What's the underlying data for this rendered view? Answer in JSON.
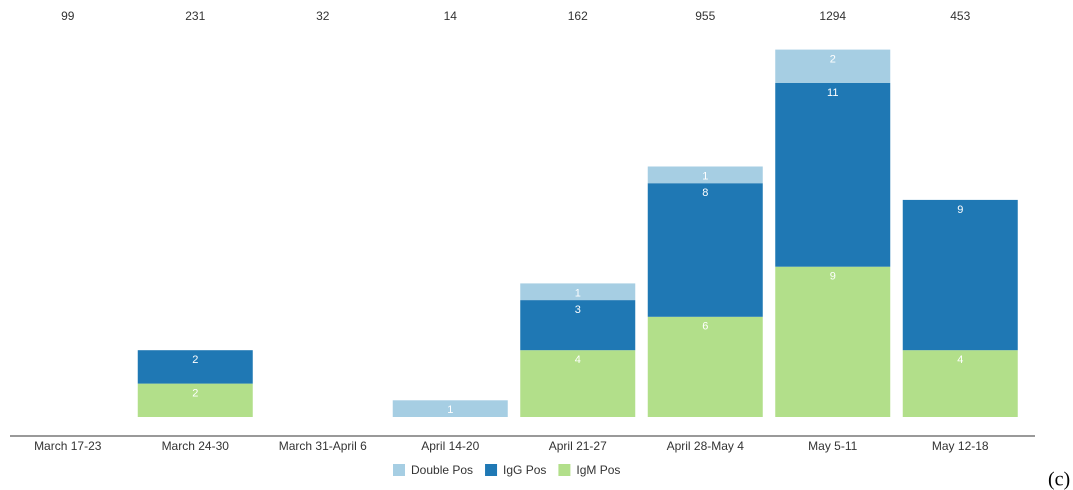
{
  "chart_data": {
    "type": "bar",
    "stacked": true,
    "categories": [
      "March 17-23",
      "March 24-30",
      "March 31-April 6",
      "April 14-20",
      "April 21-27",
      "April 28-May 4",
      "May 5-11",
      "May 12-18"
    ],
    "sample_counts": [
      99,
      231,
      32,
      14,
      162,
      955,
      1294,
      453
    ],
    "series": [
      {
        "name": "Double Pos",
        "color": "#a6cee3",
        "values": [
          null,
          null,
          null,
          1,
          1,
          1,
          2,
          null
        ]
      },
      {
        "name": "IgG Pos",
        "color": "#1f78b4",
        "values": [
          null,
          2,
          null,
          null,
          3,
          8,
          11,
          9
        ]
      },
      {
        "name": "IgM Pos",
        "color": "#b2df8a",
        "values": [
          null,
          2,
          null,
          null,
          4,
          6,
          9,
          4
        ]
      }
    ],
    "legend": "bottom",
    "panel_label": "(c)"
  }
}
